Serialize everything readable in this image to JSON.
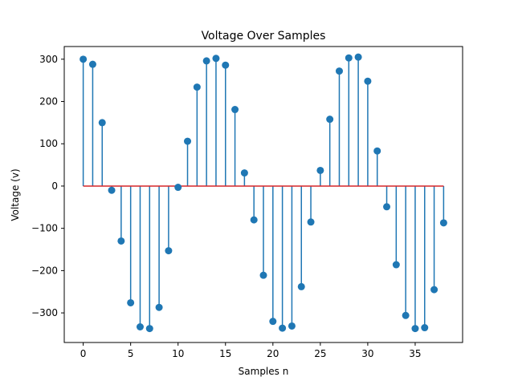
{
  "chart_data": {
    "type": "stem",
    "title": "Voltage Over Samples",
    "xlabel": "Samples n",
    "ylabel": "Voltage (v)",
    "x": [
      0,
      1,
      2,
      3,
      4,
      5,
      6,
      7,
      8,
      9,
      10,
      11,
      12,
      13,
      14,
      15,
      16,
      17,
      18,
      19,
      20,
      21,
      22,
      23,
      24,
      25,
      26,
      27,
      28,
      29,
      30,
      31,
      32,
      33,
      34,
      35,
      36,
      37,
      38
    ],
    "values": [
      300,
      288,
      150,
      -10,
      -130,
      -276,
      -333,
      -337,
      -287,
      -153,
      -3,
      106,
      234,
      296,
      302,
      286,
      181,
      31,
      -80,
      -211,
      -320,
      -336,
      -331,
      -238,
      -85,
      37,
      158,
      272,
      303,
      305,
      248,
      83,
      -49,
      -186,
      -306,
      -337,
      -335,
      -245,
      -87
    ],
    "xlim": [
      -2.0,
      40.0
    ],
    "ylim": [
      -370,
      330
    ],
    "xticks": [
      0,
      5,
      10,
      15,
      20,
      25,
      30,
      35
    ],
    "yticks": [
      -300,
      -200,
      -100,
      0,
      100,
      200,
      300
    ],
    "ytick_labels": [
      "−300",
      "−200",
      "−100",
      "0",
      "100",
      "200",
      "300"
    ],
    "baseline": 0,
    "grid": false,
    "colors": {
      "stem": "#1f77b4",
      "marker": "#1f77b4",
      "baseline": "#d62728",
      "axes": "#000000"
    }
  }
}
